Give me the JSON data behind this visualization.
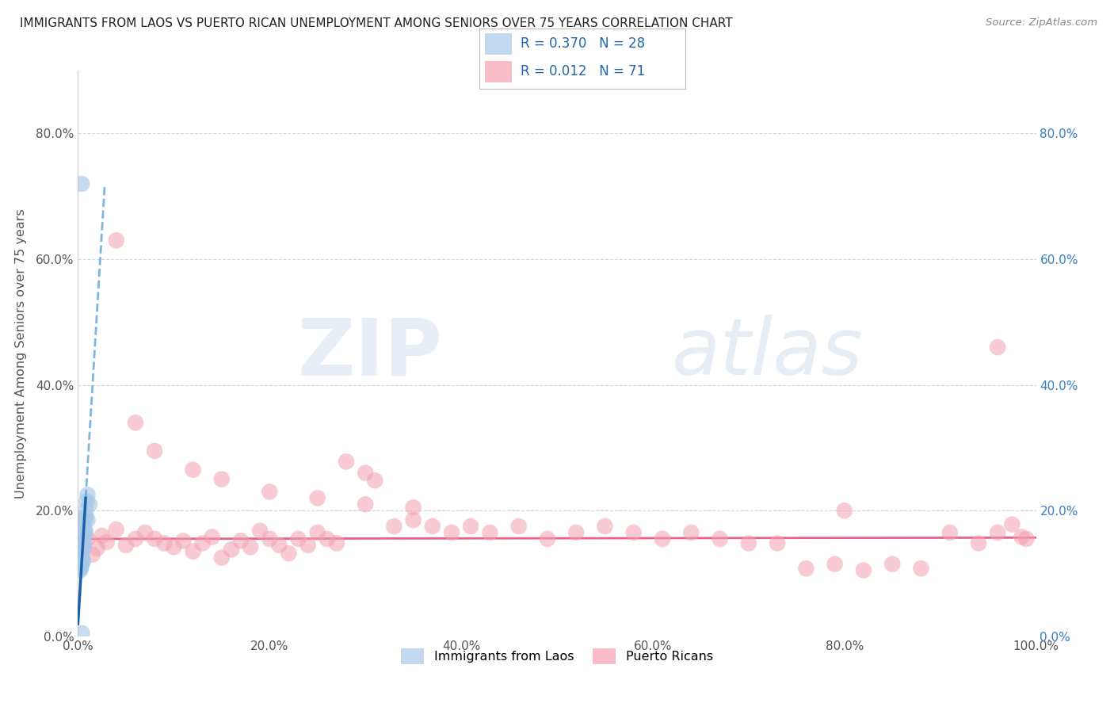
{
  "title": "IMMIGRANTS FROM LAOS VS PUERTO RICAN UNEMPLOYMENT AMONG SENIORS OVER 75 YEARS CORRELATION CHART",
  "source": "Source: ZipAtlas.com",
  "ylabel": "Unemployment Among Seniors over 75 years",
  "xlim": [
    0.0,
    1.0
  ],
  "ylim": [
    0.0,
    0.9
  ],
  "xtick_vals": [
    0.0,
    0.2,
    0.4,
    0.6,
    0.8,
    1.0
  ],
  "xtick_labels": [
    "0.0%",
    "20.0%",
    "40.0%",
    "60.0%",
    "80.0%",
    "100.0%"
  ],
  "ytick_vals": [
    0.0,
    0.2,
    0.4,
    0.6,
    0.8
  ],
  "ytick_labels": [
    "0.0%",
    "20.0%",
    "40.0%",
    "60.0%",
    "80.0%"
  ],
  "R_blue": 0.37,
  "N_blue": 28,
  "R_pink": 0.012,
  "N_pink": 71,
  "legend_label_blue": "Immigrants from Laos",
  "legend_label_pink": "Puerto Ricans",
  "blue_color": "#a8c8e8",
  "pink_color": "#f4a0b0",
  "blue_line_solid_color": "#1a5fa8",
  "blue_line_dash_color": "#6aaad4",
  "pink_line_color": "#e8507a",
  "background_color": "#ffffff",
  "grid_color": "#cccccc",
  "title_color": "#222222",
  "watermark_zip": "ZIP",
  "watermark_atlas": "atlas",
  "legend_text_color": "#2166ac",
  "blue_x": [
    0.004,
    0.006,
    0.003,
    0.005,
    0.007,
    0.002,
    0.004,
    0.006,
    0.008,
    0.003,
    0.005,
    0.007,
    0.009,
    0.004,
    0.006,
    0.008,
    0.01,
    0.003,
    0.005,
    0.007,
    0.002,
    0.004,
    0.008,
    0.01,
    0.012,
    0.003,
    0.006,
    0.004
  ],
  "blue_y": [
    0.72,
    0.14,
    0.115,
    0.12,
    0.17,
    0.11,
    0.145,
    0.175,
    0.2,
    0.13,
    0.155,
    0.185,
    0.215,
    0.125,
    0.15,
    0.19,
    0.225,
    0.108,
    0.118,
    0.16,
    0.105,
    0.135,
    0.165,
    0.185,
    0.21,
    0.112,
    0.142,
    0.005
  ],
  "pink_x": [
    0.005,
    0.01,
    0.015,
    0.02,
    0.025,
    0.03,
    0.04,
    0.05,
    0.06,
    0.07,
    0.08,
    0.09,
    0.1,
    0.11,
    0.12,
    0.13,
    0.14,
    0.15,
    0.16,
    0.17,
    0.18,
    0.19,
    0.2,
    0.21,
    0.22,
    0.23,
    0.24,
    0.25,
    0.26,
    0.27,
    0.28,
    0.3,
    0.31,
    0.33,
    0.35,
    0.37,
    0.39,
    0.41,
    0.43,
    0.46,
    0.49,
    0.52,
    0.55,
    0.58,
    0.61,
    0.64,
    0.67,
    0.7,
    0.73,
    0.76,
    0.79,
    0.82,
    0.85,
    0.88,
    0.91,
    0.94,
    0.96,
    0.975,
    0.985,
    0.99,
    0.04,
    0.06,
    0.08,
    0.12,
    0.15,
    0.2,
    0.25,
    0.3,
    0.35,
    0.8,
    0.96
  ],
  "pink_y": [
    0.145,
    0.155,
    0.13,
    0.14,
    0.16,
    0.15,
    0.17,
    0.145,
    0.155,
    0.165,
    0.155,
    0.148,
    0.142,
    0.152,
    0.135,
    0.148,
    0.158,
    0.125,
    0.138,
    0.152,
    0.142,
    0.168,
    0.155,
    0.145,
    0.132,
    0.155,
    0.145,
    0.165,
    0.155,
    0.148,
    0.278,
    0.26,
    0.248,
    0.175,
    0.185,
    0.175,
    0.165,
    0.175,
    0.165,
    0.175,
    0.155,
    0.165,
    0.175,
    0.165,
    0.155,
    0.165,
    0.155,
    0.148,
    0.148,
    0.108,
    0.115,
    0.105,
    0.115,
    0.108,
    0.165,
    0.148,
    0.165,
    0.178,
    0.158,
    0.155,
    0.63,
    0.34,
    0.295,
    0.265,
    0.25,
    0.23,
    0.22,
    0.21,
    0.205,
    0.2,
    0.46
  ]
}
